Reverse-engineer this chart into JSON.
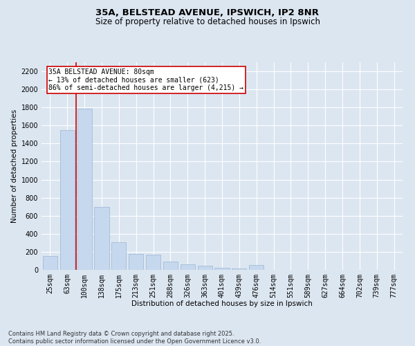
{
  "title_line1": "35A, BELSTEAD AVENUE, IPSWICH, IP2 8NR",
  "title_line2": "Size of property relative to detached houses in Ipswich",
  "xlabel": "Distribution of detached houses by size in Ipswich",
  "ylabel": "Number of detached properties",
  "categories": [
    "25sqm",
    "63sqm",
    "100sqm",
    "138sqm",
    "175sqm",
    "213sqm",
    "251sqm",
    "288sqm",
    "326sqm",
    "363sqm",
    "401sqm",
    "439sqm",
    "476sqm",
    "514sqm",
    "551sqm",
    "589sqm",
    "627sqm",
    "664sqm",
    "702sqm",
    "739sqm",
    "777sqm"
  ],
  "values": [
    152,
    1545,
    1790,
    695,
    310,
    175,
    170,
    95,
    65,
    45,
    25,
    12,
    50,
    3,
    2,
    2,
    1,
    1,
    1,
    1,
    1
  ],
  "bar_color": "#c5d8ed",
  "bar_edge_color": "#9ab5d4",
  "vline_color": "#cc0000",
  "annotation_text": "35A BELSTEAD AVENUE: 80sqm\n← 13% of detached houses are smaller (623)\n86% of semi-detached houses are larger (4,215) →",
  "annotation_box_color": "#ffffff",
  "annotation_box_edge": "#cc0000",
  "ylim": [
    0,
    2300
  ],
  "yticks": [
    0,
    200,
    400,
    600,
    800,
    1000,
    1200,
    1400,
    1600,
    1800,
    2000,
    2200
  ],
  "background_color": "#dce6f1",
  "plot_bg_color": "#dce6f1",
  "grid_color": "#ffffff",
  "footer_line1": "Contains HM Land Registry data © Crown copyright and database right 2025.",
  "footer_line2": "Contains public sector information licensed under the Open Government Licence v3.0.",
  "title_fontsize": 9.5,
  "subtitle_fontsize": 8.5,
  "axis_label_fontsize": 7.5,
  "tick_fontsize": 7,
  "annotation_fontsize": 7,
  "footer_fontsize": 6
}
